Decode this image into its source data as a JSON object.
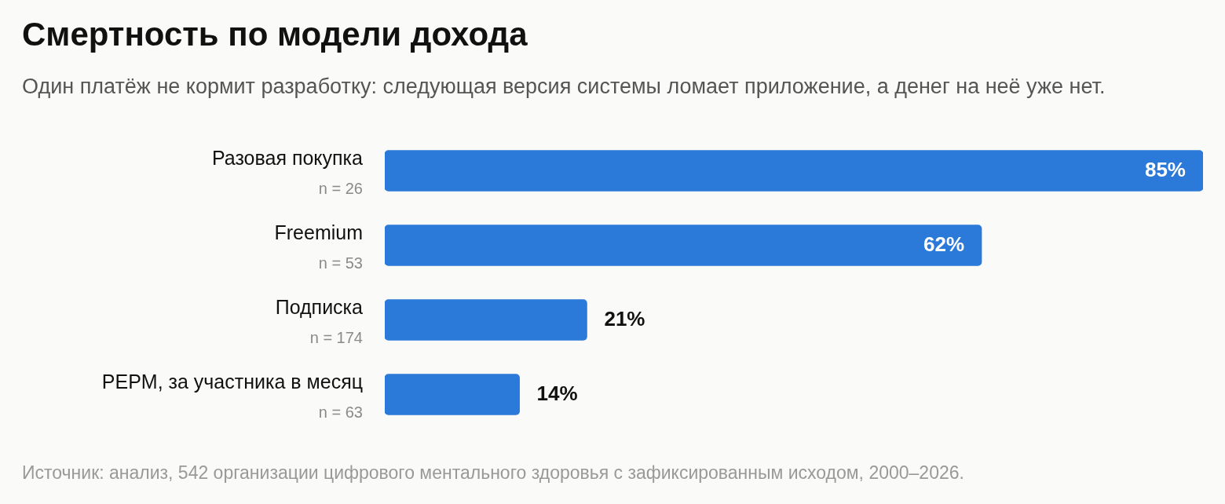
{
  "chart_data": {
    "type": "bar",
    "orientation": "horizontal",
    "title": "Смертность по модели дохода",
    "subtitle": "Один платёж не кормит разработку: следующая версия системы ломает приложение, а денег на неё уже нет.",
    "categories": [
      "Разовая покупка\nn = 26",
      "Freemium\nn = 53",
      "Подписка\nn = 174",
      "PEPM, за участника в месяц\nn = 63"
    ],
    "values": [
      85,
      62,
      21,
      14
    ],
    "value_labels": [
      "85%",
      "62%",
      "21%",
      "14%"
    ],
    "color": "#2b79d8",
    "grid": false,
    "legend": false,
    "annotations": [
      "Источник: анализ, 542 организации цифрового ментального здоровья с зафиксированным исходом, 2000–2026."
    ]
  }
}
